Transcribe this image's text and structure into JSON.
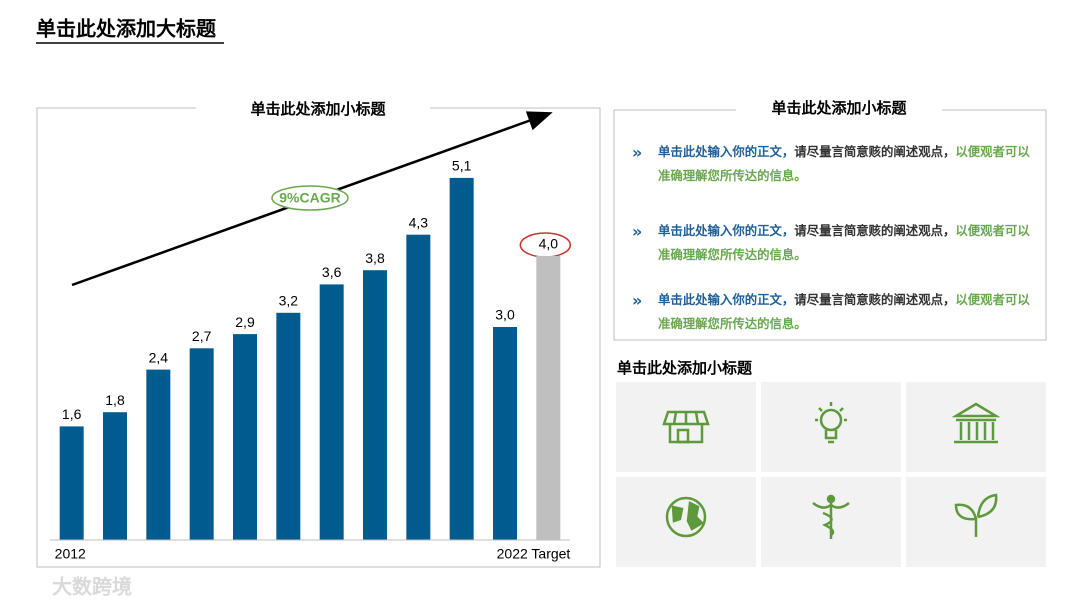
{
  "title": "单击此处添加大标题",
  "chart_data": {
    "type": "bar",
    "subtitle": "单击此处添加小标题",
    "categories": [
      "2012",
      null,
      null,
      null,
      null,
      null,
      null,
      null,
      null,
      null,
      null,
      "2022 Target"
    ],
    "values": [
      1.6,
      1.8,
      2.4,
      2.7,
      2.9,
      3.2,
      3.6,
      3.8,
      4.3,
      5.1,
      3.0,
      4.0
    ],
    "value_labels": [
      "1,6",
      "1,8",
      "2,4",
      "2,7",
      "2,9",
      "3,2",
      "3,6",
      "3,8",
      "4,3",
      "5,1",
      "3,0",
      "4,0"
    ],
    "colors": [
      "#005b8e",
      "#005b8e",
      "#005b8e",
      "#005b8e",
      "#005b8e",
      "#005b8e",
      "#005b8e",
      "#005b8e",
      "#005b8e",
      "#005b8e",
      "#005b8e",
      "#bfbfbf"
    ],
    "ylim": [
      0,
      6
    ],
    "annotations": [
      "9%CAGR"
    ]
  },
  "text_panel": {
    "title": "单击此处添加小标题",
    "items": [
      {
        "lead": "单击此处输入你的正文，",
        "body": "请尽量言简意赅的阐述观点，",
        "highlight": "以便观者可以准确理解您所传达的信息。"
      },
      {
        "lead": "单击此处输入你的正文，",
        "body": "请尽量言简意赅的阐述观点，",
        "highlight": "以便观者可以准确理解您所传达的信息。"
      },
      {
        "lead": "单击此处输入你的正文，",
        "body": "请尽量言简意赅的阐述观点，",
        "highlight": "以便观者可以准确理解您所传达的信息。"
      }
    ]
  },
  "icon_section": {
    "title": "单击此处添加小标题"
  },
  "watermark": "大数跨境"
}
